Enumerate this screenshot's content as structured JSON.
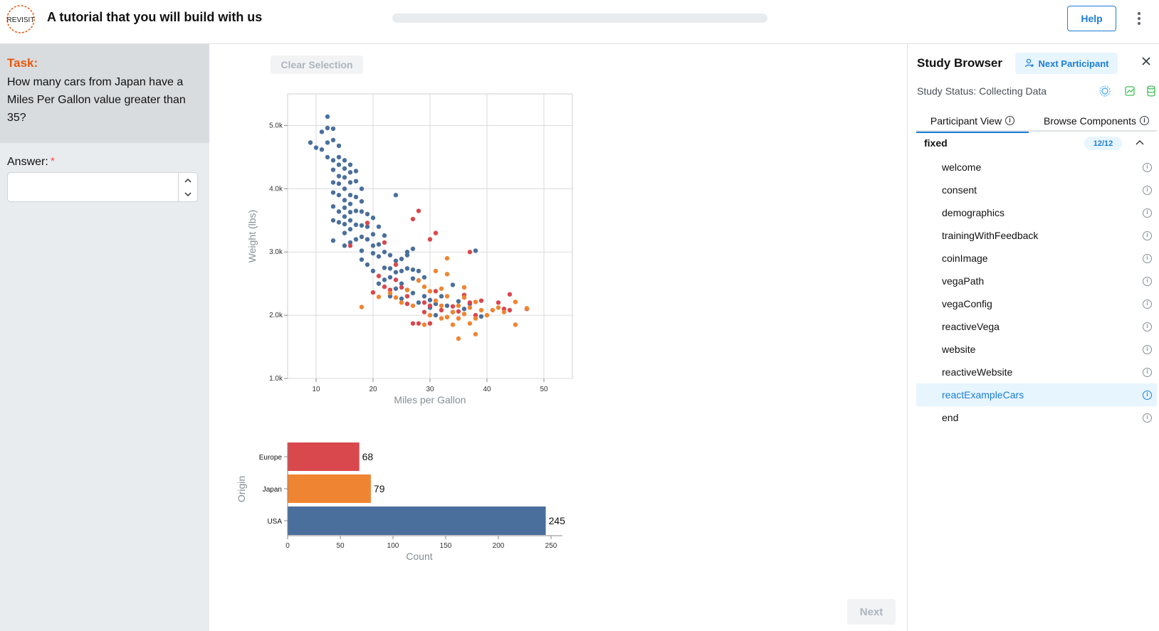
{
  "header": {
    "title": "A tutorial that you will build with us",
    "logo_text": "REVISIT",
    "help_label": "Help",
    "progress": 0
  },
  "task": {
    "label": "Task:",
    "text": "How many cars from Japan have a Miles Per Gallon value greater than 35?",
    "answer_label": "Answer:",
    "required_mark": "*",
    "answer_value": ""
  },
  "main": {
    "clear_selection_label": "Clear Selection",
    "next_label": "Next"
  },
  "sidebar": {
    "title": "Study Browser",
    "next_participant_label": "Next Participant",
    "status": "Study Status: Collecting Data",
    "tabs": [
      {
        "label": "Participant View"
      },
      {
        "label": "Browse Components"
      }
    ],
    "group": {
      "name": "fixed",
      "badge": "12/12"
    },
    "items": [
      {
        "label": "welcome"
      },
      {
        "label": "consent"
      },
      {
        "label": "demographics"
      },
      {
        "label": "trainingWithFeedback"
      },
      {
        "label": "coinImage"
      },
      {
        "label": "vegaPath"
      },
      {
        "label": "vegaConfig"
      },
      {
        "label": "reactiveVega"
      },
      {
        "label": "website"
      },
      {
        "label": "reactiveWebsite"
      },
      {
        "label": "reactExampleCars"
      },
      {
        "label": "end"
      }
    ],
    "active_item": "reactExampleCars"
  },
  "colors": {
    "usa": "#4a6f9c",
    "europe": "#d9484d",
    "japan": "#ef8532",
    "accent": "#1c7ed6",
    "task_label": "#e8590c"
  },
  "chart_data": [
    {
      "type": "scatter",
      "xlabel": "Miles per Gallon",
      "ylabel": "Weight (lbs)",
      "xlim": [
        5,
        55
      ],
      "ylim": [
        1000,
        5500
      ],
      "xticks": [
        "10",
        "20",
        "30",
        "40",
        "50"
      ],
      "yticks": [
        "1.0k",
        "2.0k",
        "3.0k",
        "4.0k",
        "5.0k"
      ],
      "grid": true,
      "series": [
        {
          "name": "USA",
          "color": "#4a6f9c",
          "points": [
            [
              9,
              4730
            ],
            [
              10,
              4650
            ],
            [
              11,
              4900
            ],
            [
              11,
              4620
            ],
            [
              12,
              5140
            ],
            [
              12,
              4960
            ],
            [
              12,
              4730
            ],
            [
              12,
              4500
            ],
            [
              13,
              4450
            ],
            [
              13,
              4300
            ],
            [
              13,
              4950
            ],
            [
              13,
              4770
            ],
            [
              13,
              4100
            ],
            [
              13,
              3940
            ],
            [
              13,
              3720
            ],
            [
              13,
              3500
            ],
            [
              13,
              3180
            ],
            [
              14,
              4680
            ],
            [
              14,
              4500
            ],
            [
              14,
              4380
            ],
            [
              14,
              4200
            ],
            [
              14,
              4080
            ],
            [
              14,
              3900
            ],
            [
              14,
              3640
            ],
            [
              14,
              3470
            ],
            [
              15,
              4450
            ],
            [
              15,
              4320
            ],
            [
              15,
              4180
            ],
            [
              15,
              4000
            ],
            [
              15,
              3820
            ],
            [
              15,
              3700
            ],
            [
              15,
              3560
            ],
            [
              15,
              3440
            ],
            [
              15,
              3300
            ],
            [
              15,
              3100
            ],
            [
              16,
              4380
            ],
            [
              16,
              4260
            ],
            [
              16,
              4100
            ],
            [
              16,
              3900
            ],
            [
              16,
              3760
            ],
            [
              16,
              3630
            ],
            [
              16,
              3500
            ],
            [
              16,
              3360
            ],
            [
              16,
              3150
            ],
            [
              17,
              4280
            ],
            [
              17,
              4120
            ],
            [
              17,
              3870
            ],
            [
              17,
              3650
            ],
            [
              17,
              3430
            ],
            [
              17,
              3200
            ],
            [
              18,
              4000
            ],
            [
              18,
              3800
            ],
            [
              18,
              3640
            ],
            [
              18,
              3420
            ],
            [
              18,
              3240
            ],
            [
              18,
              3020
            ],
            [
              18,
              2880
            ],
            [
              19,
              3600
            ],
            [
              19,
              3400
            ],
            [
              19,
              3200
            ],
            [
              19,
              2800
            ],
            [
              20,
              3540
            ],
            [
              20,
              3280
            ],
            [
              20,
              3100
            ],
            [
              20,
              2980
            ],
            [
              20,
              2700
            ],
            [
              21,
              3400
            ],
            [
              21,
              3120
            ],
            [
              21,
              2930
            ],
            [
              21,
              2500
            ],
            [
              22,
              3260
            ],
            [
              22,
              3000
            ],
            [
              22,
              2750
            ],
            [
              22,
              2560
            ],
            [
              23,
              2950
            ],
            [
              23,
              2740
            ],
            [
              23,
              2600
            ],
            [
              23,
              2300
            ],
            [
              24,
              3900
            ],
            [
              24,
              2860
            ],
            [
              24,
              2680
            ],
            [
              24,
              2420
            ],
            [
              25,
              2890
            ],
            [
              25,
              2700
            ],
            [
              25,
              2500
            ],
            [
              25,
              2260
            ],
            [
              26,
              2950
            ],
            [
              26,
              2740
            ],
            [
              26,
              2400
            ],
            [
              27,
              2720
            ],
            [
              27,
              2580
            ],
            [
              27,
              2350
            ],
            [
              28,
              2700
            ],
            [
              28,
              2550
            ],
            [
              28,
              2200
            ],
            [
              29,
              2600
            ],
            [
              29,
              2300
            ],
            [
              30,
              2240
            ],
            [
              30,
              2120
            ],
            [
              31,
              2000
            ],
            [
              31,
              2180
            ],
            [
              32,
              2300
            ],
            [
              33,
              2150
            ],
            [
              34,
              2050
            ],
            [
              35,
              2220
            ],
            [
              36,
              2100
            ],
            [
              37,
              2180
            ],
            [
              38,
              3020
            ],
            [
              39,
              1980
            ],
            [
              34,
              2480
            ],
            [
              26,
              3000
            ],
            [
              27,
              3050
            ]
          ]
        },
        {
          "name": "Europe",
          "color": "#d9484d",
          "points": [
            [
              16,
              3100
            ],
            [
              19,
              3460
            ],
            [
              20,
              2360
            ],
            [
              21,
              2620
            ],
            [
              22,
              2450
            ],
            [
              22,
              3150
            ],
            [
              23,
              2400
            ],
            [
              24,
              2800
            ],
            [
              25,
              2440
            ],
            [
              26,
              2300
            ],
            [
              27,
              3520
            ],
            [
              28,
              3650
            ],
            [
              29,
              2200
            ],
            [
              30,
              2150
            ],
            [
              30,
              3200
            ],
            [
              31,
              2380
            ],
            [
              32,
              2080
            ],
            [
              33,
              1970
            ],
            [
              34,
              2140
            ],
            [
              35,
              2060
            ],
            [
              27,
              1870
            ],
            [
              28,
              1870
            ],
            [
              30,
              1870
            ],
            [
              36,
              2320
            ],
            [
              37,
              2200
            ],
            [
              38,
              2000
            ],
            [
              39,
              2230
            ],
            [
              42,
              2200
            ],
            [
              43,
              2100
            ],
            [
              44,
              2330
            ],
            [
              44,
              2080
            ],
            [
              47,
              2100
            ],
            [
              31,
              3300
            ],
            [
              37,
              3000
            ],
            [
              24,
              2560
            ],
            [
              26,
              2180
            ],
            [
              29,
              2050
            ]
          ]
        },
        {
          "name": "Japan",
          "color": "#ef8532",
          "points": [
            [
              18,
              2130
            ],
            [
              21,
              2290
            ],
            [
              23,
              2350
            ],
            [
              24,
              2280
            ],
            [
              25,
              2200
            ],
            [
              26,
              2400
            ],
            [
              27,
              2150
            ],
            [
              28,
              2550
            ],
            [
              29,
              2450
            ],
            [
              30,
              2380
            ],
            [
              30,
              2000
            ],
            [
              31,
              2230
            ],
            [
              31,
              2700
            ],
            [
              32,
              2420
            ],
            [
              32,
              1950
            ],
            [
              33,
              2300
            ],
            [
              33,
              2650
            ],
            [
              33,
              1970
            ],
            [
              34,
              2050
            ],
            [
              34,
              1850
            ],
            [
              35,
              2150
            ],
            [
              35,
              1950
            ],
            [
              36,
              2440
            ],
            [
              36,
              2280
            ],
            [
              37,
              2120
            ],
            [
              37,
              1870
            ],
            [
              38,
              2210
            ],
            [
              38,
              1950
            ],
            [
              39,
              2080
            ],
            [
              40,
              2000
            ],
            [
              41,
              2080
            ],
            [
              42,
              2120
            ],
            [
              43,
              2050
            ],
            [
              45,
              2210
            ],
            [
              45,
              1850
            ],
            [
              47,
              2110
            ],
            [
              35,
              1630
            ],
            [
              38,
              1700
            ],
            [
              33,
              2900
            ],
            [
              29,
              1850
            ],
            [
              32,
              2150
            ],
            [
              36,
              2020
            ]
          ]
        }
      ]
    },
    {
      "type": "bar",
      "orientation": "horizontal",
      "categories": [
        "Europe",
        "Japan",
        "USA"
      ],
      "values": [
        68,
        79,
        245
      ],
      "colors": [
        "#d9484d",
        "#ef8532",
        "#4a6f9c"
      ],
      "xlabel": "Count",
      "ylabel": "Origin",
      "xlim": [
        0,
        250
      ],
      "xticks": [
        "0",
        "50",
        "100",
        "150",
        "200",
        "250"
      ]
    }
  ]
}
